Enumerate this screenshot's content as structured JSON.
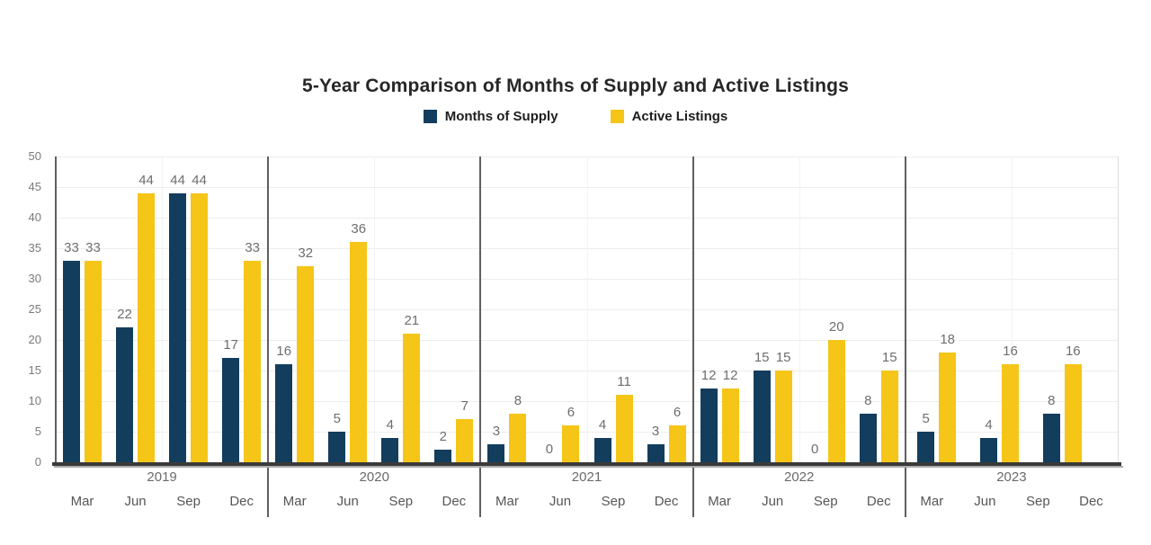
{
  "title": "5-Year Comparison of Months of Supply and Active Listings",
  "legend": [
    {
      "label": "Months of Supply",
      "color": "#133d5d",
      "icon": "navy-square-swatch"
    },
    {
      "label": "Active Listings",
      "color": "#f5c518",
      "icon": "yellow-square-swatch"
    }
  ],
  "chart_data": {
    "type": "bar",
    "title": "5-Year Comparison of Months of Supply and Active Listings",
    "xlabel": "",
    "ylabel": "",
    "ylim": [
      0,
      50
    ],
    "yticks": [
      0,
      5,
      10,
      15,
      20,
      25,
      30,
      35,
      40,
      45,
      50
    ],
    "grid": true,
    "legend_position": "top",
    "year_groups": [
      "2019",
      "2020",
      "2021",
      "2022",
      "2023"
    ],
    "quarter_labels": [
      "Mar",
      "Jun",
      "Sep",
      "Dec"
    ],
    "series": [
      {
        "name": "Months of Supply",
        "color": "#133d5d",
        "values": [
          [
            33,
            22,
            44,
            17
          ],
          [
            16,
            5,
            4,
            2
          ],
          [
            3,
            0,
            4,
            3
          ],
          [
            12,
            15,
            0,
            8
          ],
          [
            5,
            4,
            8,
            null
          ]
        ]
      },
      {
        "name": "Active Listings",
        "color": "#f5c518",
        "values": [
          [
            33,
            44,
            44,
            33
          ],
          [
            32,
            36,
            21,
            7
          ],
          [
            8,
            6,
            11,
            6
          ],
          [
            12,
            15,
            20,
            15
          ],
          [
            18,
            16,
            16,
            null
          ]
        ]
      }
    ]
  }
}
